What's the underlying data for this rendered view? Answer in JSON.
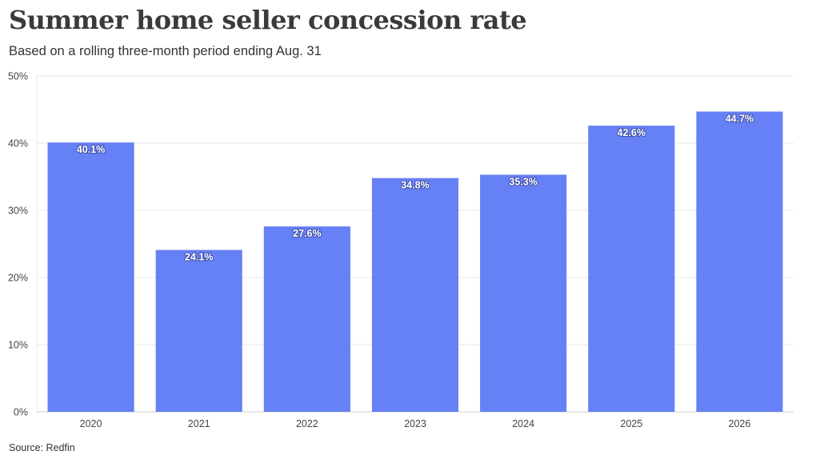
{
  "title": "Summer home seller concession rate",
  "subtitle": "Based on a rolling three-month period ending Aug. 31",
  "source": "Source: Redfin",
  "colors": {
    "bar": "#6680f5",
    "grid": "#e8e8e8",
    "axis": "#cccccc"
  },
  "chart_data": {
    "type": "bar",
    "categories": [
      "2020",
      "2021",
      "2022",
      "2023",
      "2024",
      "2025",
      "2026"
    ],
    "values": [
      40.1,
      24.1,
      27.6,
      34.8,
      35.3,
      42.6,
      44.7
    ],
    "data_labels": [
      "40.1%",
      "24.1%",
      "27.6%",
      "34.8%",
      "35.3%",
      "42.6%",
      "44.7%"
    ],
    "ylim": [
      0,
      50
    ],
    "yticks": [
      0,
      10,
      20,
      30,
      40,
      50
    ],
    "ytick_labels": [
      "0%",
      "10%",
      "20%",
      "30%",
      "40%",
      "50%"
    ],
    "grid": true,
    "legend": "none"
  }
}
